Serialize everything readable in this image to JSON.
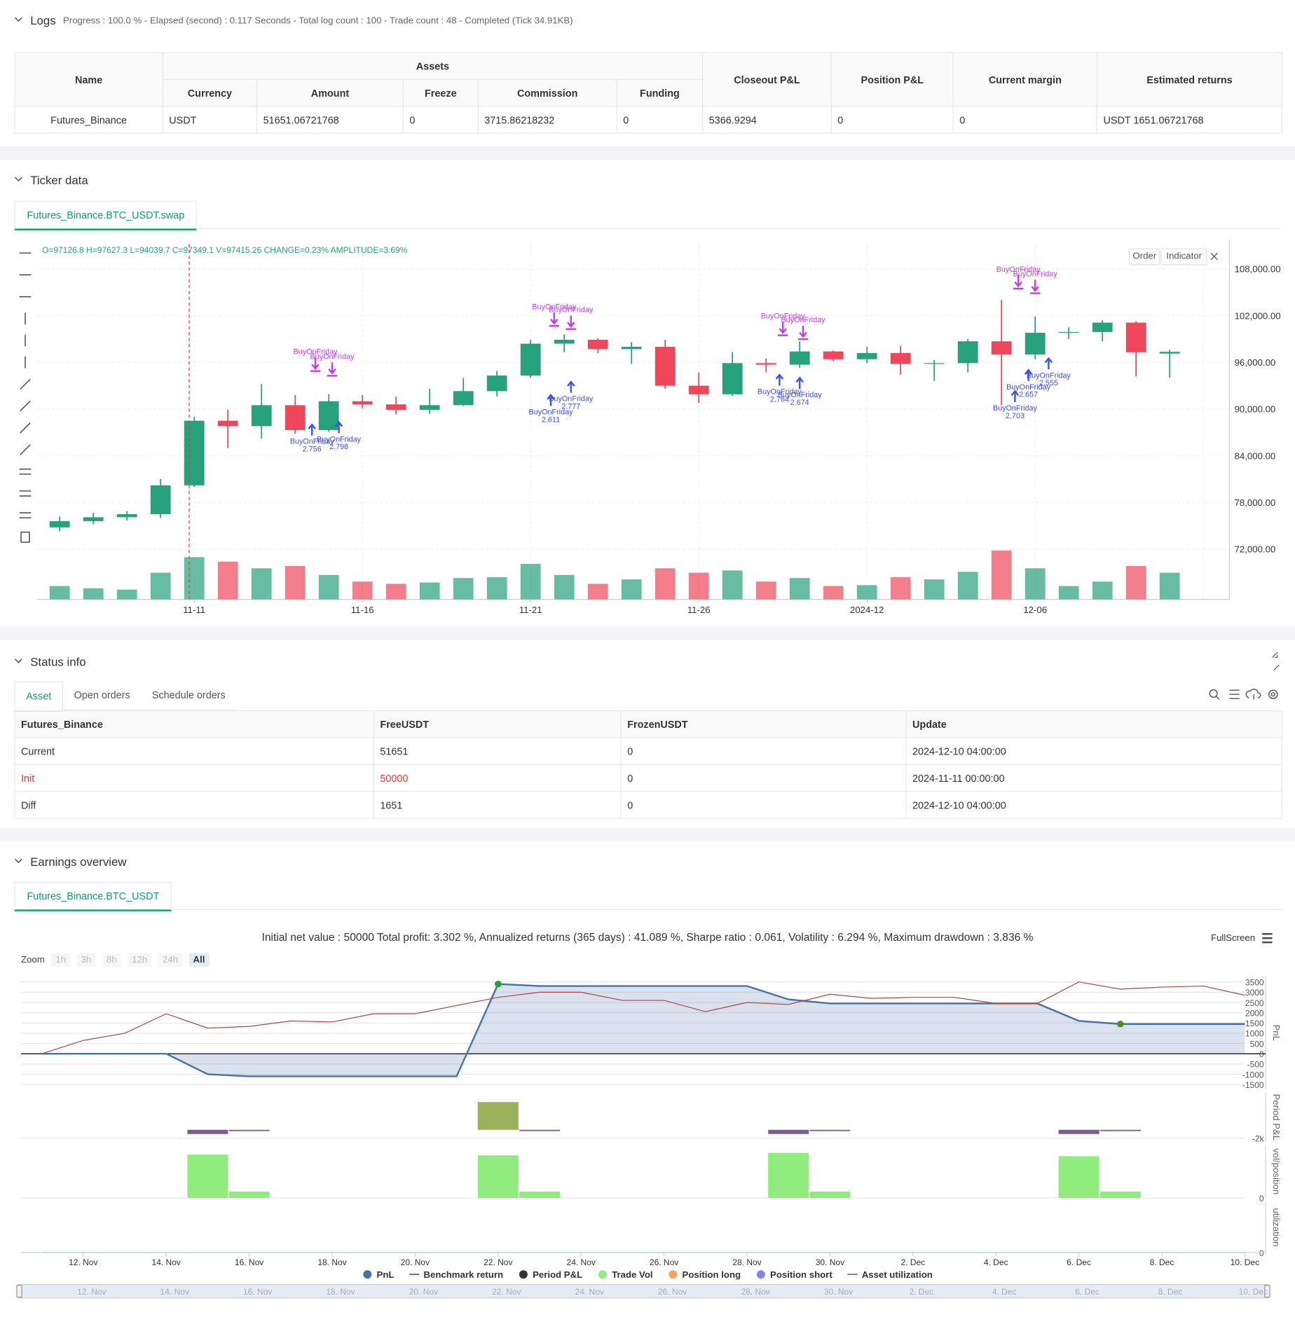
{
  "logs": {
    "title": "Logs",
    "summary": "Progress : 100.0 % - Elapsed (second) : 0.117 Seconds - Total log count : 100 - Trade count : 48 - Completed (Tick 34.91KB)",
    "table": {
      "headers": [
        "Name",
        {
          "group": "Assets",
          "headers": [
            "Currency",
            "Amount",
            "Freeze",
            "Commission",
            "Funding"
          ]
        },
        "Closeout P&L",
        "Position P&L",
        "Current margin",
        "Estimated returns"
      ],
      "rows": [
        [
          "Futures_Binance",
          "USDT",
          "51651.06721768",
          "0",
          "3715.86218232",
          "0",
          "5366.9294",
          "0",
          "0",
          "USDT 1651.06721768"
        ]
      ]
    }
  },
  "ticker": {
    "title": "Ticker data",
    "tab": "Futures_Binance.BTC_USDT.swap",
    "quote": "O=97126.8 H=97627.3 L=94039.7 C=97349.1 V=97415.26 CHANGE=0.23% AMPLITUDE=3.69%",
    "buttons": [
      "Order",
      "Indicator"
    ]
  },
  "status": {
    "title": "Status info",
    "tabs": [
      "Asset",
      "Open orders",
      "Schedule orders"
    ],
    "table": {
      "headers": [
        "Futures_Binance",
        "FreeUSDT",
        "FrozenUSDT",
        "Update"
      ],
      "rows": [
        [
          "Current",
          "51651",
          "0",
          "2024-12-10 04:00:00"
        ],
        [
          "Init",
          "50000",
          "0",
          "2024-11-11 00:00:00"
        ],
        [
          "Diff",
          "1651",
          "0",
          "2024-12-10 04:00:00"
        ]
      ]
    }
  },
  "earnings": {
    "title": "Earnings overview",
    "tab": "Futures_Binance.BTC_USDT",
    "zoom_label": "Zoom",
    "zoom_buttons": [
      "1h",
      "3h",
      "8h",
      "12h",
      "24h",
      "All"
    ],
    "fullscreen": "FullScreen"
  },
  "chart_data": [
    {
      "type": "candlestick",
      "categories": [
        null,
        null,
        null,
        null,
        "11-11",
        null,
        null,
        null,
        null,
        "11-16",
        null,
        null,
        null,
        null,
        "11-21",
        null,
        null,
        null,
        null,
        "11-26",
        null,
        null,
        null,
        null,
        "2024-12",
        null,
        null,
        null,
        null,
        "12-06",
        null,
        null,
        null,
        null
      ],
      "open": [
        74800,
        75600,
        76100,
        76500,
        80200,
        88500,
        87800,
        90500,
        87300,
        91000,
        90600,
        89900,
        90500,
        92300,
        94300,
        98400,
        98900,
        97700,
        98000,
        93000,
        91900,
        95900,
        95700,
        97400,
        96400,
        97200,
        95800,
        95900,
        98700,
        97000,
        99800,
        99900,
        101100,
        97126.8
      ],
      "high": [
        76200,
        76700,
        76900,
        81000,
        89000,
        89900,
        93200,
        91800,
        91900,
        91800,
        91600,
        92600,
        94000,
        94900,
        98900,
        99600,
        99100,
        98600,
        98900,
        94700,
        97300,
        96500,
        98700,
        97500,
        98000,
        98100,
        96300,
        99000,
        104000,
        101900,
        100500,
        101400,
        101300,
        97627.3
      ],
      "low": [
        74300,
        75200,
        75700,
        76000,
        80000,
        85000,
        86200,
        86800,
        87100,
        90100,
        89300,
        89400,
        90400,
        91600,
        94000,
        97300,
        97200,
        95800,
        92600,
        90800,
        91700,
        94700,
        95300,
        96100,
        95900,
        94400,
        93600,
        94700,
        90500,
        96400,
        99000,
        98700,
        94200,
        94039.7
      ],
      "close": [
        75600,
        76100,
        76500,
        80200,
        88500,
        87800,
        90500,
        87300,
        91000,
        90600,
        89900,
        90500,
        92300,
        94300,
        98400,
        98900,
        97700,
        98000,
        93000,
        91900,
        95900,
        95700,
        97400,
        96400,
        97200,
        95800,
        95900,
        98700,
        97000,
        99800,
        99900,
        101100,
        97300,
        97349.1
      ],
      "volume": [
        30000,
        25000,
        22000,
        60000,
        95000,
        85000,
        70000,
        75000,
        55000,
        40000,
        35000,
        38000,
        48000,
        50000,
        80000,
        55000,
        35000,
        45000,
        70000,
        60000,
        65000,
        40000,
        48000,
        30000,
        32000,
        50000,
        45000,
        62000,
        110000,
        70000,
        30000,
        40000,
        75000,
        60000
      ],
      "up_color": "#26a17b",
      "down_color": "#f0465a",
      "ylim": [
        65550,
        111230
      ],
      "yticks": [
        {
          "value": 72000,
          "label": "72,000.00"
        },
        {
          "value": 78000,
          "label": "78,000.00"
        },
        {
          "value": 84000,
          "label": "84,000.00"
        },
        {
          "value": 90000,
          "label": "90,000.00"
        },
        {
          "value": 96000,
          "label": "96,000.00"
        },
        {
          "value": 102000,
          "label": "102,000.00"
        },
        {
          "value": 108000,
          "label": "108,000.00"
        }
      ],
      "y2lim": [
        0,
        800000
      ],
      "grid": true,
      "signals": [
        {
          "side": "buy",
          "label": "BuyOnFriday",
          "x": 7.5,
          "price": 88000,
          "amount": 2.756
        },
        {
          "side": "buy",
          "label": "BuyOnFriday",
          "x": 8.3,
          "price": 88300,
          "amount": 2.798
        },
        {
          "side": "buy",
          "label": "BuyOnFriday",
          "x": 14.6,
          "price": 91800,
          "amount": 2.611
        },
        {
          "side": "buy",
          "label": "BuyOnFriday",
          "x": 15.2,
          "price": 93500,
          "amount": 2.777
        },
        {
          "side": "buy",
          "label": "BuyOnFriday",
          "x": 21.4,
          "price": 94400,
          "amount": 2.764
        },
        {
          "side": "buy",
          "label": "BuyOnFriday",
          "x": 22.0,
          "price": 94000,
          "amount": 2.674
        },
        {
          "side": "buy",
          "label": "BuyOnFriday",
          "x": 28.4,
          "price": 92300,
          "amount": 2.703
        },
        {
          "side": "buy",
          "label": "BuyOnFriday",
          "x": 28.8,
          "price": 95000,
          "amount": 2.657
        },
        {
          "side": "buy",
          "label": "BuyOnFriday",
          "x": 29.4,
          "price": 96500,
          "amount": 2.555
        },
        {
          "side": "sell",
          "label": "BuyOnFriday",
          "x": 7.6,
          "price": 95200
        },
        {
          "side": "sell",
          "label": "BuyOnFriday",
          "x": 8.1,
          "price": 94600
        },
        {
          "side": "sell",
          "label": "BuyOnFriday",
          "x": 14.7,
          "price": 101000
        },
        {
          "side": "sell",
          "label": "BuyOnFriday",
          "x": 15.2,
          "price": 100600
        },
        {
          "side": "sell",
          "label": "BuyOnFriday",
          "x": 21.5,
          "price": 99800
        },
        {
          "side": "sell",
          "label": "BuyOnFriday",
          "x": 22.1,
          "price": 99300
        },
        {
          "side": "sell",
          "label": "BuyOnFriday",
          "x": 28.5,
          "price": 105800
        },
        {
          "side": "sell",
          "label": "BuyOnFriday",
          "x": 29.0,
          "price": 105200
        }
      ]
    },
    {
      "type": "combo",
      "subtitle": "Initial net value : 50000 Total profit: 3.302 %, Annualized returns (365 days) : 41.089 %, Sharpe ratio : 0.061, Volatility : 6.294 %, Maximum drawdown : 3.836 %",
      "categories": [
        null,
        "12. Nov",
        null,
        "14. Nov",
        null,
        "16. Nov",
        null,
        "18. Nov",
        null,
        "20. Nov",
        null,
        "22. Nov",
        null,
        "24. Nov",
        null,
        "26. Nov",
        null,
        "28. Nov",
        null,
        "30. Nov",
        null,
        "2. Dec",
        null,
        "4. Dec",
        null,
        "6. Dec",
        null,
        "8. Dec",
        null,
        "10. Dec"
      ],
      "panels": [
        {
          "axis_title": "PnL",
          "ylim": [
            -1700,
            3750
          ],
          "yticks": [
            -1500,
            -1000,
            -500,
            0,
            500,
            1000,
            1500,
            2000,
            2500,
            3000,
            3500
          ],
          "grid": true,
          "series": [
            {
              "name": "PnL",
              "type": "area",
              "color": "#4572a7",
              "values": [
                0,
                0,
                0,
                0,
                -1000,
                -1100,
                -1100,
                -1100,
                -1100,
                -1100,
                -1100,
                3400,
                3300,
                3300,
                3300,
                3300,
                3300,
                3300,
                2650,
                2450,
                2450,
                2450,
                2450,
                2450,
                2450,
                1600,
                1450,
                1450,
                1450,
                1450
              ]
            },
            {
              "name": "Benchmark return",
              "type": "line",
              "color": "#aa4643",
              "values": [
                0,
                650,
                1000,
                1950,
                1250,
                1330,
                1600,
                1550,
                1950,
                1950,
                2350,
                2750,
                3000,
                3000,
                2600,
                2600,
                2050,
                2500,
                2400,
                2900,
                2700,
                2750,
                2750,
                2450,
                2450,
                3500,
                3150,
                3250,
                3300,
                2850
              ]
            }
          ]
        },
        {
          "axis_title": "Period P&L",
          "ylim": [
            -2800,
            8800
          ],
          "yticks": [
            {
              "value": -2000,
              "label": "-2k"
            }
          ],
          "series": [
            {
              "name": "Period P&L",
              "type": "bar",
              "color": "#333333",
              "positive_color": "#9bb05a",
              "negative_color": "#7b5c99",
              "values": [
                null,
                null,
                null,
                null,
                -1000,
                -150,
                null,
                null,
                null,
                null,
                null,
                6600,
                -150,
                null,
                null,
                null,
                null,
                null,
                -1000,
                -150,
                null,
                null,
                null,
                null,
                null,
                -1000,
                -150,
                null,
                null,
                null
              ]
            }
          ]
        },
        {
          "axis_title": "vol/position",
          "ylim": [
            0,
            330000
          ],
          "yticks": [
            0
          ],
          "series": [
            {
              "name": "Trade Vol",
              "type": "bar",
              "color": "#90ed7d",
              "values": [
                null,
                null,
                null,
                null,
                270000,
                40000,
                null,
                null,
                null,
                null,
                null,
                265000,
                40000,
                null,
                null,
                null,
                null,
                null,
                280000,
                40000,
                null,
                null,
                null,
                null,
                null,
                260000,
                40000,
                null,
                null,
                null
              ]
            },
            {
              "name": "Position long",
              "type": "scatter",
              "color": "#f7a35c",
              "values": [
                null,
                null,
                null,
                null,
                null,
                null,
                null,
                null,
                null,
                null,
                null,
                null,
                null,
                null,
                null,
                null,
                null,
                null,
                null,
                null,
                null,
                null,
                null,
                null,
                null,
                null,
                null,
                null,
                null,
                null
              ]
            },
            {
              "name": "Position short",
              "type": "scatter",
              "color": "#8085e9",
              "values": [
                null,
                null,
                null,
                null,
                null,
                null,
                null,
                null,
                null,
                null,
                null,
                null,
                null,
                null,
                null,
                null,
                null,
                null,
                null,
                null,
                null,
                null,
                null,
                null,
                null,
                null,
                null,
                null,
                null,
                null
              ]
            }
          ]
        },
        {
          "axis_title": "utilization",
          "ylim": [
            0,
            1
          ],
          "yticks": [
            0
          ],
          "series": [
            {
              "name": "Asset utilization",
              "type": "line",
              "color": "#7d7d4a",
              "values": [
                0,
                0,
                0,
                0,
                0,
                0,
                0,
                0,
                0,
                0,
                0,
                0,
                0,
                0,
                0,
                0,
                0,
                0,
                0,
                0,
                0,
                0,
                0,
                0,
                0,
                0,
                0,
                0,
                0,
                0
              ]
            }
          ]
        }
      ]
    }
  ]
}
